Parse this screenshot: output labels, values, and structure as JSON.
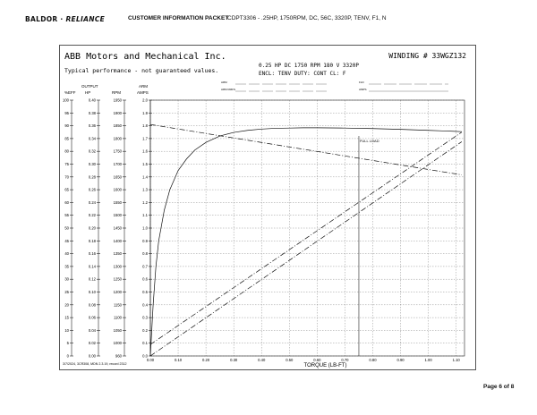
{
  "header": {
    "logo_main": "BALDOR",
    "logo_sep": " · ",
    "logo_brand": "RELIANCE",
    "title": "CUSTOMER INFORMATION PACKET",
    "subtitle": "CDPT3306 - .25HP, 1750RPM, DC, 56C, 3320P, TENV, F1, N"
  },
  "sheet": {
    "company": "ABB Motors and Mechanical Inc.",
    "winding": "WINDING # 33WGZ132",
    "typical": "Typical performance - not guaranteed values.",
    "spec1": "0.25 HP  DC  1750 RPM  180 V  3320P",
    "spec2": "ENCL: TENV  DUTY: CONT  CL: F",
    "armr": "ARM",
    "armrmf": "ARM RMFS",
    "fld": "FLD",
    "amps": "AMPS",
    "col_headers": {
      "effpf": "%EFF",
      "output_top": "OUTPUT",
      "hp": "HP",
      "rpm": "RPM",
      "arm_top": "ARM",
      "amps": "AMPS"
    },
    "footer_note": "3/7/2024, 3CR308, MDN 2.3.19, record 2312",
    "full_load_label": "FULL LOAD"
  },
  "page_number": "Page 6 of 8",
  "chart_data": {
    "type": "line",
    "xlabel": "TORQUE (LB-FT)",
    "xlim": [
      0.0,
      1.13
    ],
    "x_ticks": [
      "0.00",
      "0.10",
      "0.20",
      "0.30",
      "0.40",
      "0.50",
      "0.60",
      "0.70",
      "0.80",
      "0.90",
      "1.00",
      "1.10"
    ],
    "grid": true,
    "full_load_torque": 0.75,
    "axes": {
      "eff": [
        "0",
        "5",
        "10",
        "15",
        "20",
        "25",
        "30",
        "35",
        "40",
        "45",
        "50",
        "55",
        "60",
        "65",
        "70",
        "75",
        "80",
        "85",
        "90",
        "95",
        "100"
      ],
      "hp": [
        "0.00",
        "0.02",
        "0.04",
        "0.06",
        "0.08",
        "0.10",
        "0.12",
        "0.14",
        "0.16",
        "0.18",
        "0.20",
        "0.22",
        "0.24",
        "0.26",
        "0.28",
        "0.30",
        "0.32",
        "0.34",
        "0.36",
        "0.38",
        "0.40"
      ],
      "rpm": [
        "960",
        "1000",
        "1050",
        "1100",
        "1150",
        "1200",
        "1250",
        "1300",
        "1350",
        "1400",
        "1450",
        "1500",
        "1550",
        "1600",
        "1650",
        "1700",
        "1750",
        "1800",
        "1850",
        "1900",
        "1950"
      ],
      "amps": [
        "0.0",
        "0.1",
        "0.2",
        "0.3",
        "0.4",
        "0.5",
        "0.6",
        "0.7",
        "0.8",
        "0.9",
        "1.0",
        "1.1",
        "1.2",
        "1.3",
        "1.4",
        "1.5",
        "1.6",
        "1.7",
        "1.8",
        "1.9",
        "2.0"
      ]
    },
    "series": [
      {
        "axis": "eff",
        "style": "solid",
        "x": [
          0.0,
          0.01,
          0.02,
          0.03,
          0.05,
          0.07,
          0.1,
          0.13,
          0.16,
          0.2,
          0.25,
          0.3,
          0.35,
          0.4,
          0.45,
          0.5,
          0.55,
          0.6,
          0.7,
          0.8,
          0.9,
          1.0,
          1.05,
          1.12
        ],
        "y": [
          0,
          20,
          35,
          45,
          57,
          65,
          72.5,
          77,
          80.5,
          83.5,
          86,
          87.4,
          88.2,
          88.7,
          89.0,
          89.1,
          89.2,
          89.2,
          89.1,
          88.9,
          88.6,
          88.2,
          88.0,
          87.7
        ]
      },
      {
        "axis": "rpm",
        "style": "dashdot",
        "x": [
          0.0,
          1.12
        ],
        "y": [
          1855,
          1658
        ]
      },
      {
        "axis": "amps",
        "style": "dashdot",
        "x": [
          0.0,
          1.12
        ],
        "y": [
          0.09,
          1.75
        ]
      },
      {
        "axis": "hp",
        "style": "dashdot",
        "x": [
          0.0,
          1.12
        ],
        "y": [
          0.0,
          0.335
        ]
      }
    ]
  }
}
